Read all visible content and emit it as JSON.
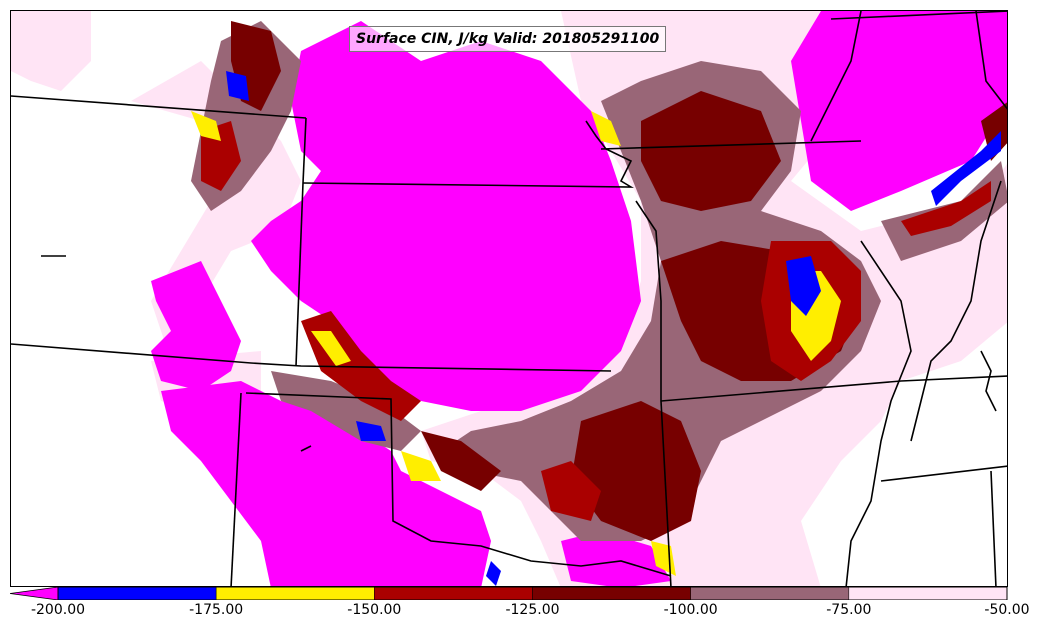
{
  "title": "Surface CIN, J/kg Valid: 201805291100",
  "colorbar": {
    "ticks": [
      "-200.00",
      "-175.00",
      "-150.00",
      "-125.00",
      "-100.00",
      "-75.00",
      "-50.00"
    ],
    "bands": [
      {
        "from": -200,
        "to": -175,
        "color": "#0000ff"
      },
      {
        "from": -175,
        "to": -150,
        "color": "#ffee00"
      },
      {
        "from": -150,
        "to": -125,
        "color": "#aa0000"
      },
      {
        "from": -125,
        "to": -100,
        "color": "#770000"
      },
      {
        "from": -100,
        "to": -75,
        "color": "#996677"
      },
      {
        "from": -75,
        "to": -50,
        "color": "#ffe4f5"
      }
    ],
    "under_color": "#ff00ff"
  },
  "colors": {
    "below_min": "#ff00ff",
    "above_max": "#ffffff",
    "borders": "#000000"
  }
}
